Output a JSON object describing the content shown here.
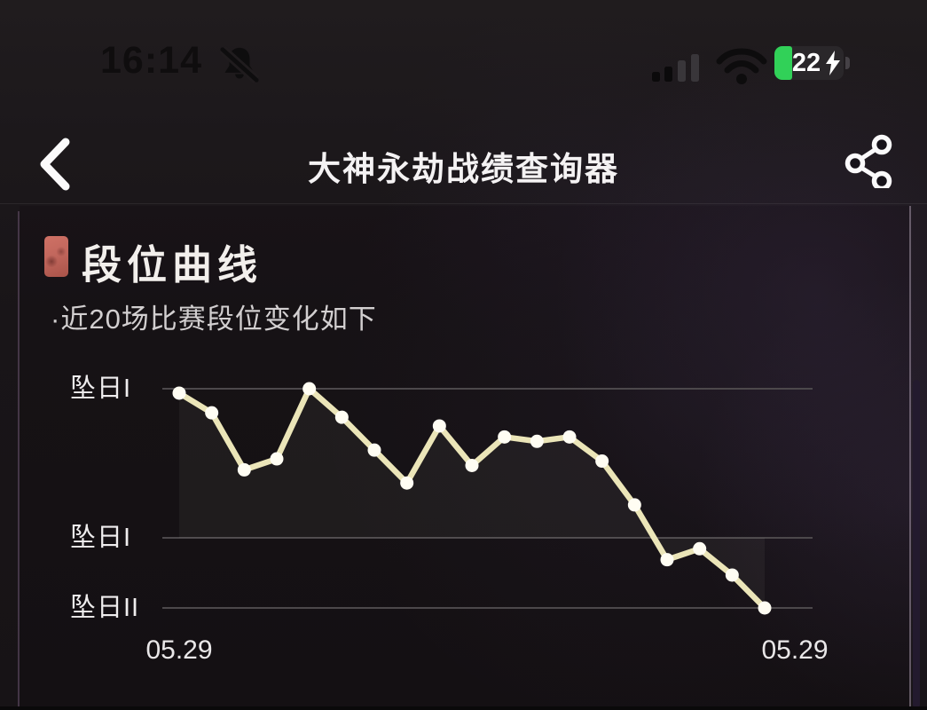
{
  "status_bar": {
    "time": "16:14",
    "battery_percent": "22",
    "battery_color": "#31d158",
    "charging": true
  },
  "nav": {
    "title": "大神永劫战绩查询器"
  },
  "section": {
    "title": "段位曲线",
    "subtitle": "·近20场比赛段位变化如下",
    "badge_color": "#c2675d"
  },
  "chart_data": {
    "type": "line",
    "title": "段位曲线",
    "subtitle": "近20场比赛段位变化如下",
    "x_axis_labels": [
      "05.29",
      "05.29"
    ],
    "y_ticks": [
      {
        "label": "坠日I",
        "value": 100
      },
      {
        "label": "坠日I",
        "value": 32
      },
      {
        "label": "坠日II",
        "value": 0
      }
    ],
    "ylim": [
      0,
      100
    ],
    "value_scale": "0 = 坠日II gridline, 100 = upper 坠日I gridline",
    "values": [
      98,
      89,
      63,
      68,
      100,
      87,
      72,
      57,
      83,
      65,
      78,
      76,
      78,
      67,
      47,
      22,
      27,
      15,
      0
    ],
    "line_color": "#ebe5b8",
    "point_color": "#fffdf3",
    "grid_color": "#4c484b",
    "grid": true,
    "legend": false
  }
}
